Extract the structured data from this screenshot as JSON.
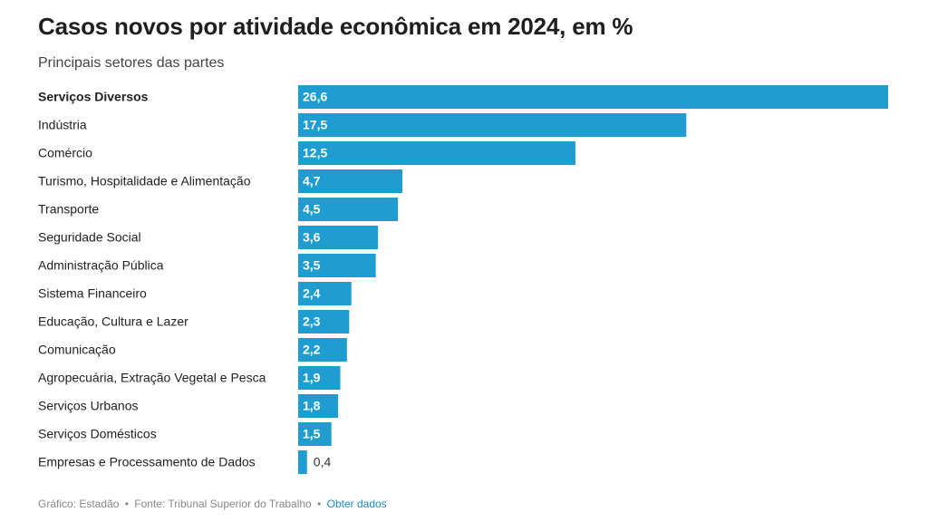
{
  "title": "Casos novos por atividade econômica em 2024, em %",
  "subtitle": "Principais setores das partes",
  "footer": {
    "credit": "Gráfico: Estadão",
    "source": "Fonte: Tribunal Superior do Trabalho",
    "separator": "•",
    "link_label": "Obter dados"
  },
  "colors": {
    "bar": "#1f9dd1",
    "label_inside": "#ffffff",
    "label_outside": "#333333",
    "link": "#1a8cc4"
  },
  "chart_data": {
    "type": "bar",
    "orientation": "horizontal",
    "categories": [
      "Serviços Diversos",
      "Indústria",
      "Comércio",
      "Turismo, Hospitalidade e Alimentação",
      "Transporte",
      "Seguridade Social",
      "Administração Pública",
      "Sistema Financeiro",
      "Educação, Cultura e Lazer",
      "Comunicação",
      "Agropecuária, Extração Vegetal e Pesca",
      "Serviços Urbanos",
      "Serviços Domésticos",
      "Empresas e Processamento de Dados"
    ],
    "values": [
      26.6,
      17.5,
      12.5,
      4.7,
      4.5,
      3.6,
      3.5,
      2.4,
      2.3,
      2.2,
      1.9,
      1.8,
      1.5,
      0.4
    ],
    "value_labels": [
      "26,6",
      "17,5",
      "12,5",
      "4,7",
      "4,5",
      "3,6",
      "3,5",
      "2,4",
      "2,3",
      "2,2",
      "1,9",
      "1,8",
      "1,5",
      "0,4"
    ],
    "bold_categories": [
      "Serviços Diversos"
    ],
    "xlim": [
      0,
      26.6
    ],
    "grid": false,
    "legend": "none"
  }
}
